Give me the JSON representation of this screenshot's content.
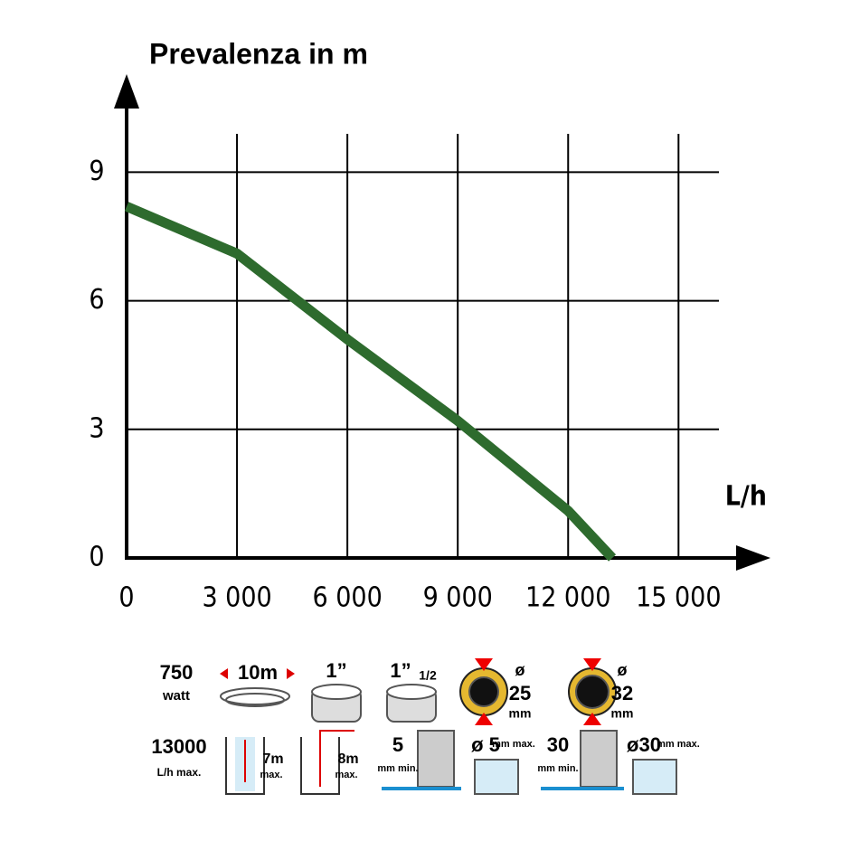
{
  "chart_data": {
    "type": "line",
    "y_label": "Prevalenza in m",
    "x_label": "L/h",
    "x": [
      0,
      3000,
      6000,
      9000,
      12000,
      13200
    ],
    "series": [
      {
        "color": "#2e6b2e",
        "values": [
          8.2,
          7.1,
          5.1,
          3.2,
          1.1,
          0
        ]
      }
    ],
    "xlim": [
      0,
      16000
    ],
    "ylim": [
      0,
      10
    ],
    "xticks": [
      0,
      {
        "value": 3000,
        "label": "3 000"
      },
      {
        "value": 6000,
        "label": "6 000"
      },
      {
        "value": 9000,
        "label": "9 000"
      },
      {
        "value": 12000,
        "label": "12 000"
      },
      {
        "value": 15000,
        "label": "15 000"
      }
    ],
    "yticks": [
      0,
      3,
      6,
      9
    ],
    "grid": true
  },
  "icons": {
    "power": "750",
    "power_unit": "watt",
    "cable": "10m",
    "hose1": "1”",
    "hose2": "1”",
    "hose2_sub": "1/2",
    "d1_sym": "ø",
    "d1": "25",
    "d1_unit": "mm",
    "d2_sym": "ø",
    "d2": "32",
    "d2_unit": "mm",
    "flow": "13000",
    "flow_unit": "L/h max.",
    "depth": "7m",
    "depth_max": "max.",
    "head": "8m",
    "head_max": "max.",
    "level1": "5",
    "level1_unit": "mm min.",
    "particle1": "ø 5",
    "particle1_unit": "mm max.",
    "level2": "30",
    "level2_unit": "mm min.",
    "particle2": "ø30",
    "particle2_unit": "mm max."
  }
}
